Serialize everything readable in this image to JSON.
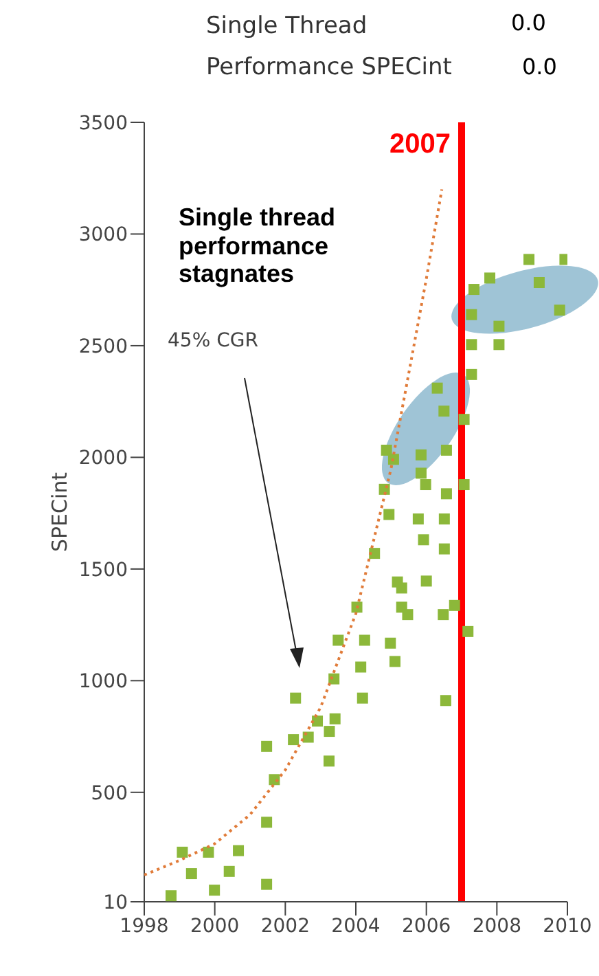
{
  "chart_data": {
    "type": "scatter",
    "title": "Single Thread Performance SPECint",
    "ylabel": "SPECint",
    "xlim": [
      1998,
      2010
    ],
    "xticks": [
      1998,
      2000,
      2002,
      2004,
      2006,
      2008,
      2010
    ],
    "ylim": [
      10,
      3500
    ],
    "yticks": [
      10,
      500,
      1000,
      1500,
      2000,
      2500,
      3000,
      3500
    ],
    "marker": "square",
    "series": [
      {
        "color": "#8cb83a",
        "x": [
          1998.76,
          1999.08,
          1999.34,
          1999.82,
          1999.99,
          2000.41,
          2000.67,
          2001.47,
          2001.47,
          2001.47,
          2001.69,
          2002.23,
          2002.29,
          2002.65,
          2002.91,
          2003.24,
          2003.25,
          2003.41,
          2003.38,
          2003.5,
          2004.03,
          2004.14,
          2004.19,
          2004.25,
          2004.53,
          2004.94,
          2004.98,
          2005.11,
          2005.18,
          2005.3,
          2005.3,
          2005.47,
          2005.77,
          2005.92,
          2006.0,
          2006.51,
          2006.51,
          2006.48,
          2006.55,
          2006.8,
          2007.18,
          2008.91,
          2009.93,
          2007.8,
          2009.2,
          2007.35,
          2009.78,
          2007.28,
          2008.06,
          2008.06,
          2007.28,
          2007.28,
          2006.31,
          2006.5,
          2007.07,
          2004.87,
          2005.07,
          2005.85,
          2006.57,
          2005.85,
          2005.98,
          2004.81,
          2006.57,
          2007.07
        ],
        "values": [
          37,
          232,
          136,
          232,
          62,
          146,
          239,
          706,
          366,
          88,
          557,
          736,
          922,
          747,
          819,
          640,
          773,
          829,
          1008,
          1181,
          1329,
          1061,
          922,
          1181,
          1570,
          1744,
          1168,
          1086,
          1442,
          1415,
          1329,
          1296,
          1724,
          1631,
          1446,
          1724,
          1590,
          1296,
          911,
          1337,
          1220,
          2886,
          2886,
          2803,
          2783,
          2752,
          2659,
          2639,
          2587,
          2505,
          2505,
          2371,
          2310,
          2207,
          2170,
          2032,
          1991,
          2011,
          2032,
          1929,
          1878,
          1857,
          1837,
          1878
        ]
      },
      {
        "type": "line",
        "color": "#e07b39",
        "line_style": "dotted",
        "marker": "none",
        "x": [
          1998,
          1999,
          2000,
          2001,
          2002,
          2003,
          2004,
          2005,
          2006,
          2006.44
        ],
        "values": [
          130,
          195,
          270,
          400,
          600,
          880,
          1300,
          1950,
          2800,
          3200
        ]
      }
    ],
    "ref_lines": [
      {
        "axis": "x",
        "value": 2007,
        "label": "2007",
        "color": "#ff0000",
        "line_style": "solid"
      }
    ],
    "annotations": [
      "Single thread performance stagnates",
      "45% CGR",
      "0.0",
      "0.0"
    ]
  }
}
